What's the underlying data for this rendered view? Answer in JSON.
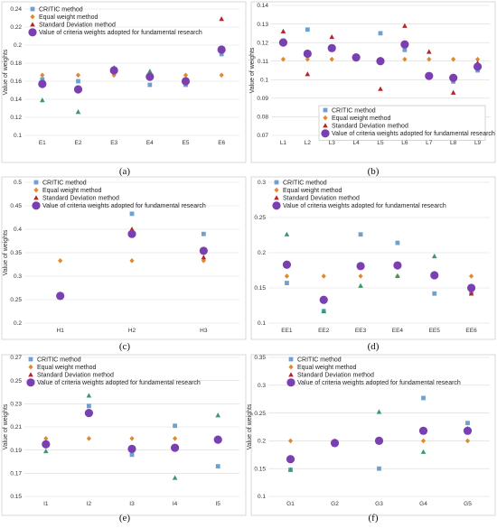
{
  "colors": {
    "critic": "#6fa0d0",
    "equal": "#e08a2e",
    "std": "#b3282a",
    "std_alt": "#3a9a6a",
    "adopted": "#7a3fb0"
  },
  "legend_labels": [
    "CRITIC method",
    "Equal weight method",
    "Standard Deviation method",
    "Value of criteria weights adopted for fundamental research"
  ],
  "chart_data": [
    {
      "type": "scatter",
      "label": "(a)",
      "ylabel": "Value of weights",
      "categories": [
        "E1",
        "E2",
        "E3",
        "E4",
        "E5",
        "E6"
      ],
      "ylim": [
        0.1,
        0.24
      ],
      "yticks": [
        "0.1",
        "0.12",
        "0.14",
        "0.16",
        "0.18",
        "0.2",
        "0.22",
        "0.24"
      ],
      "series": [
        {
          "name": "CRITIC method",
          "values": [
            0.162,
            0.16,
            0.171,
            0.156,
            0.156,
            0.19
          ]
        },
        {
          "name": "Equal weight method",
          "values": [
            0.1667,
            0.1667,
            0.1667,
            0.1667,
            0.1667,
            0.1667
          ]
        },
        {
          "name": "Standard Deviation method",
          "values": [
            0.139,
            0.126,
            0.175,
            0.171,
            0.162,
            0.229
          ]
        },
        {
          "name": "Value of criteria weights adopted for fundamental research",
          "values": [
            0.157,
            0.151,
            0.172,
            0.165,
            0.16,
            0.195
          ]
        }
      ],
      "std_colors": [
        "#3a9a6a",
        "#3a9a6a",
        "#3a9a6a",
        "#3a9a6a",
        "#3a9a6a",
        "#b3282a"
      ]
    },
    {
      "type": "scatter",
      "label": "(b)",
      "ylabel": "Value of weights",
      "categories": [
        "L1",
        "L2",
        "L3",
        "L4",
        "L5",
        "L6",
        "L7",
        "L8",
        "L9"
      ],
      "ylim": [
        0.07,
        0.14
      ],
      "yticks": [
        "0.07",
        "0.08",
        "0.09",
        "0.1",
        "0.11",
        "0.12",
        "0.13",
        "0.14"
      ],
      "series": [
        {
          "name": "CRITIC method",
          "values": [
            0.121,
            0.127,
            0.117,
            0.112,
            0.125,
            0.116,
            0.102,
            0.099,
            0.105
          ]
        },
        {
          "name": "Equal weight method",
          "values": [
            0.111,
            0.111,
            0.111,
            0.111,
            0.111,
            0.111,
            0.111,
            0.111,
            0.111
          ]
        },
        {
          "name": "Standard Deviation method",
          "values": [
            0.126,
            0.103,
            0.123,
            0.112,
            0.095,
            0.129,
            0.115,
            0.093,
            0.109
          ]
        },
        {
          "name": "Value of criteria weights adopted for fundamental research",
          "values": [
            0.12,
            0.114,
            0.117,
            0.112,
            0.11,
            0.119,
            0.102,
            0.101,
            0.107
          ]
        }
      ],
      "std_colors": [
        "#b3282a",
        "#b3282a",
        "#b3282a",
        "#b3282a",
        "#b3282a",
        "#b3282a",
        "#b3282a",
        "#b3282a",
        "#b3282a"
      ]
    },
    {
      "type": "scatter",
      "label": "(c)",
      "ylabel": "Value of weights",
      "categories": [
        "H1",
        "H2",
        "H3"
      ],
      "ylim": [
        0.2,
        0.5
      ],
      "yticks": [
        "0.2",
        "0.25",
        "0.3",
        "0.35",
        "0.4",
        "0.45",
        "0.5"
      ],
      "series": [
        {
          "name": "CRITIC method",
          "values": [
            0.258,
            0.433,
            0.39
          ]
        },
        {
          "name": "Equal weight method",
          "values": [
            0.333,
            0.333,
            0.333
          ]
        },
        {
          "name": "Standard Deviation method",
          "values": [
            0.257,
            0.4,
            0.34
          ]
        },
        {
          "name": "Value of criteria weights adopted for fundamental research",
          "values": [
            0.258,
            0.39,
            0.354
          ]
        }
      ],
      "std_colors": [
        "#b3282a",
        "#b3282a",
        "#b3282a"
      ]
    },
    {
      "type": "scatter",
      "label": "(d)",
      "ylabel": "",
      "categories": [
        "EE1",
        "EE2",
        "EE3",
        "EE4",
        "EE5",
        "EE6"
      ],
      "ylim": [
        0.1,
        0.3
      ],
      "yticks": [
        "0.1",
        "0.15",
        "0.2",
        "0.25",
        "0.3"
      ],
      "series": [
        {
          "name": "CRITIC method",
          "values": [
            0.157,
            0.117,
            0.226,
            0.214,
            0.142,
            0.144
          ]
        },
        {
          "name": "Equal weight method",
          "values": [
            0.1667,
            0.1667,
            0.1667,
            0.1667,
            0.1667,
            0.1667
          ]
        },
        {
          "name": "Standard Deviation method",
          "values": [
            0.226,
            0.117,
            0.153,
            0.167,
            0.195,
            0.142
          ]
        },
        {
          "name": "Value of criteria weights adopted for fundamental research",
          "values": [
            0.183,
            0.133,
            0.181,
            0.182,
            0.168,
            0.15
          ]
        }
      ],
      "std_colors": [
        "#3a9a6a",
        "#3a9a6a",
        "#3a9a6a",
        "#3a9a6a",
        "#3a9a6a",
        "#b3282a"
      ]
    },
    {
      "type": "scatter",
      "label": "(e)",
      "ylabel": "Value of weights",
      "categories": [
        "I1",
        "I2",
        "I3",
        "I4",
        "I5"
      ],
      "ylim": [
        0.15,
        0.27
      ],
      "yticks": [
        "0.15",
        "0.17",
        "0.19",
        "0.21",
        "0.23",
        "0.25",
        "0.27"
      ],
      "series": [
        {
          "name": "CRITIC method",
          "values": [
            0.196,
            0.228,
            0.186,
            0.211,
            0.176
          ]
        },
        {
          "name": "Equal weight method",
          "values": [
            0.2,
            0.2,
            0.2,
            0.2,
            0.2
          ]
        },
        {
          "name": "Standard Deviation method",
          "values": [
            0.189,
            0.237,
            0.19,
            0.166,
            0.22
          ]
        },
        {
          "name": "Value of criteria weights adopted for fundamental research",
          "values": [
            0.195,
            0.222,
            0.191,
            0.192,
            0.199
          ]
        }
      ],
      "std_colors": [
        "#3a9a6a",
        "#3a9a6a",
        "#3a9a6a",
        "#3a9a6a",
        "#3a9a6a"
      ]
    },
    {
      "type": "scatter",
      "label": "(f)",
      "ylabel": "Value of weights",
      "categories": [
        "G1",
        "G2",
        "G3",
        "G4",
        "G5"
      ],
      "ylim": [
        0.1,
        0.35
      ],
      "yticks": [
        "0.1",
        "0.15",
        "0.2",
        "0.25",
        "0.3",
        "0.35"
      ],
      "series": [
        {
          "name": "CRITIC method",
          "values": [
            0.148,
            0.193,
            0.15,
            0.277,
            0.232
          ]
        },
        {
          "name": "Equal weight method",
          "values": [
            0.2,
            0.2,
            0.2,
            0.2,
            0.2
          ]
        },
        {
          "name": "Standard Deviation method",
          "values": [
            0.148,
            0.198,
            0.252,
            0.18,
            0.222
          ]
        },
        {
          "name": "Value of criteria weights adopted for fundamental research",
          "values": [
            0.167,
            0.196,
            0.2,
            0.218,
            0.218
          ]
        }
      ],
      "std_colors": [
        "#3a9a6a",
        "#3a9a6a",
        "#3a9a6a",
        "#3a9a6a",
        "#3a9a6a"
      ]
    }
  ]
}
